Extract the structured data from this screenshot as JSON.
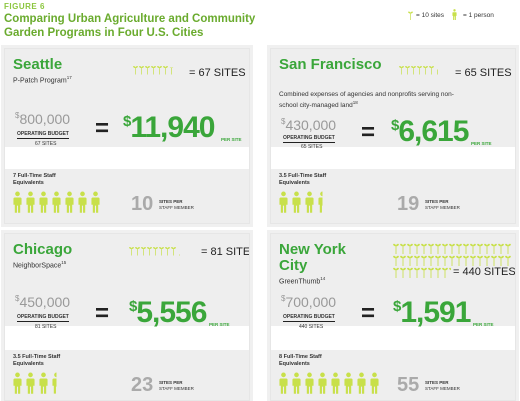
{
  "figure": {
    "label": "FIGURE 6",
    "title": "Comparing Urban Agriculture and Community Garden Programs in Four U.S. Cities"
  },
  "legend": {
    "site_icon_label": "= 10 sites",
    "person_icon_label": "= 1 person",
    "site_icon_color": "#c8e04a",
    "person_icon_color": "#c8e04a"
  },
  "colors": {
    "title_green": "#6aab2e",
    "value_green": "#3aa63a",
    "icon_green": "#c8e04a",
    "panel_band": "#eeeeee"
  },
  "panels": [
    {
      "city": "Seattle",
      "program": "P-Patch Program",
      "program_note": "17",
      "description": "",
      "description_note": "",
      "sites_label": "= 67 SITES",
      "sites": 67,
      "budget_sup": "$",
      "budget": "800,000",
      "budget_label": "OPERATING BUDGET",
      "budget_sites": "67 SITES",
      "equals": "=",
      "per_site_sup": "$",
      "per_site": "11,940",
      "per_site_label": "PER SITE",
      "staff_label": "7 Full-Time Staff Equivalents",
      "staff": 7,
      "sites_per_staff": "10",
      "sites_per_staff_label": "SITES PER",
      "sites_per_staff_label2": "STAFF MEMBER"
    },
    {
      "city": "San Francisco",
      "program": "",
      "program_note": "",
      "description": "Combined expenses of agencies and nonprofits serving non-school city-managed land",
      "description_note": "18",
      "sites_label": "= 65 SITES",
      "sites": 65,
      "budget_sup": "$",
      "budget": "430,000",
      "budget_label": "OPERATING BUDGET",
      "budget_sites": "65 SITES",
      "equals": "=",
      "per_site_sup": "$",
      "per_site": "6,615",
      "per_site_label": "PER SITE",
      "staff_label": "3.5 Full-Time Staff Equivalents",
      "staff": 3.5,
      "sites_per_staff": "19",
      "sites_per_staff_label": "SITES PER",
      "sites_per_staff_label2": "STAFF MEMBER"
    },
    {
      "city": "Chicago",
      "program": "NeighborSpace",
      "program_note": "15",
      "description": "",
      "description_note": "",
      "sites_label": "= 81 SITES",
      "sites": 81,
      "budget_sup": "$",
      "budget": "450,000",
      "budget_label": "OPERATING BUDGET",
      "budget_sites": "81 SITES",
      "equals": "=",
      "per_site_sup": "$",
      "per_site": "5,556",
      "per_site_label": "PER SITE",
      "staff_label": "3.5 Full-Time Staff Equivalents",
      "staff": 3.5,
      "sites_per_staff": "23",
      "sites_per_staff_label": "SITES PER",
      "sites_per_staff_label2": "STAFF MEMBER"
    },
    {
      "city": "New York City",
      "program": "GreenThumb",
      "program_note": "14",
      "description": "",
      "description_note": "",
      "sites_label": "= 440 SITES",
      "sites": 440,
      "budget_sup": "$",
      "budget": "700,000",
      "budget_label": "OPERATING BUDGET",
      "budget_sites": "440 SITES",
      "equals": "=",
      "per_site_sup": "$",
      "per_site": "1,591",
      "per_site_label": "PER SITE",
      "staff_label": "8 Full-Time Staff Equivalents",
      "staff": 8,
      "sites_per_staff": "55",
      "sites_per_staff_label": "SITES PER",
      "sites_per_staff_label2": "STAFF MEMBER"
    }
  ]
}
